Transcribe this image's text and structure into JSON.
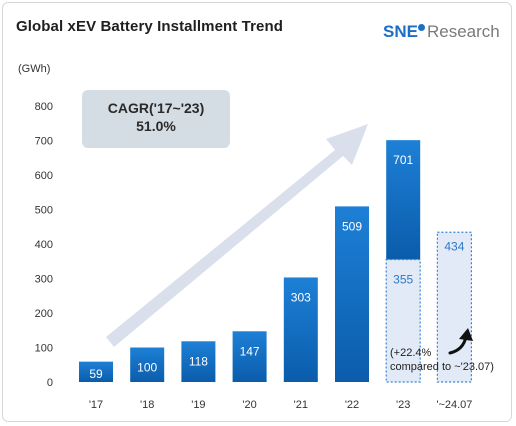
{
  "title": "Global xEV Battery Installment Trend",
  "logo": {
    "brand": "SNE",
    "suffix": "Research"
  },
  "unit_label": "(GWh)",
  "cagr": {
    "label": "CAGR('17~'23)",
    "value": "51.0%"
  },
  "growth_note": {
    "line1": "(+22.4%",
    "line2": "compared to ~'23.07)"
  },
  "colors": {
    "bar_top": "#1d80d6",
    "bar_bottom": "#0b5cab",
    "bar_label": "#ffffff",
    "partial_fill": "#e3eaf7",
    "partial_border": "#3a82d0",
    "partial_label": "#2a78c8",
    "cagr_box": "#d4dde3",
    "arrow": "#d6dde9"
  },
  "chart_data": {
    "type": "bar",
    "categories": [
      "'17",
      "'18",
      "'19",
      "'20",
      "'21",
      "'22",
      "'23",
      "'~24.07"
    ],
    "values": [
      59,
      100,
      118,
      147,
      303,
      509,
      701,
      434
    ],
    "data_labels": [
      "59",
      "100",
      "118",
      "147",
      "303",
      "509",
      "701",
      "434"
    ],
    "partial": {
      "category": "'23",
      "value": 355,
      "label": "355"
    },
    "ytick_labels": [
      "0",
      "100",
      "200",
      "300",
      "400",
      "500",
      "600",
      "700",
      "800"
    ],
    "yticks": [
      0,
      100,
      200,
      300,
      400,
      500,
      600,
      700,
      800
    ],
    "ylim": [
      0,
      800
    ],
    "ylabel": "(GWh)",
    "xlabel": "",
    "grid": false,
    "bar_styles": [
      "solid",
      "solid",
      "solid",
      "solid",
      "solid",
      "solid",
      "solid-with-dotted-partial",
      "dotted"
    ]
  }
}
